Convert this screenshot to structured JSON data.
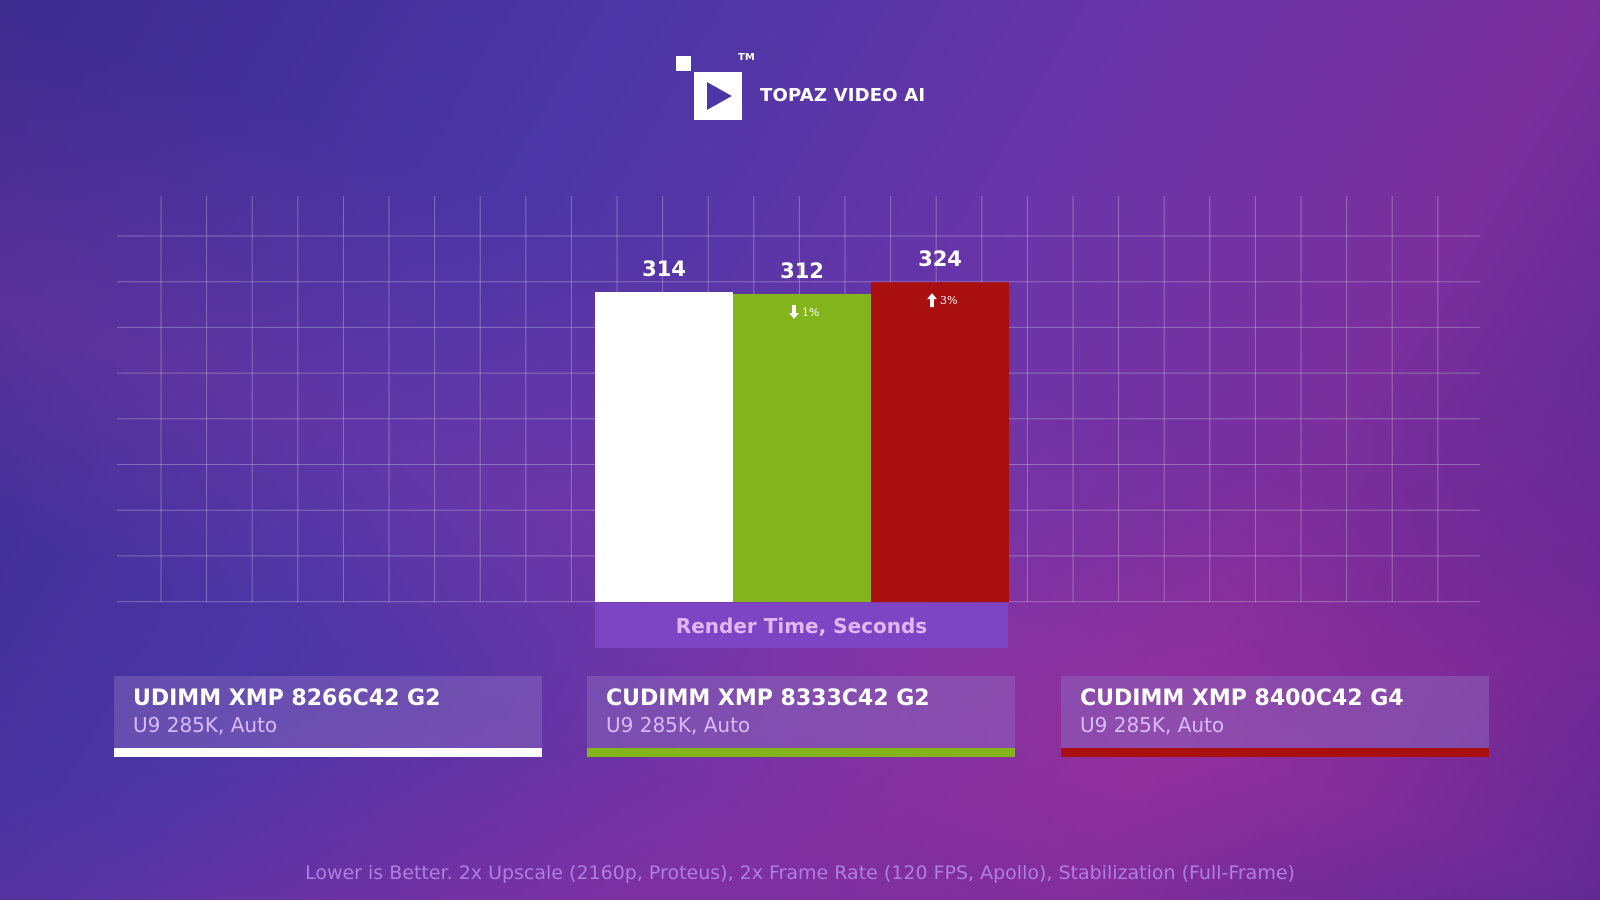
{
  "logo": {
    "name": "TOPAZ VIDEO AI",
    "tm": "TM"
  },
  "colors": {
    "white": "#ffffff",
    "green": "#84b41c",
    "red": "#aa0f0f"
  },
  "chart_data": {
    "type": "bar",
    "title": "",
    "xlabel": "Render Time, Seconds",
    "categories": [
      "UDIMM XMP 8266C42 G2",
      "CUDIMM XMP 8333C42 G2",
      "CUDIMM XMP 8400C42 G4"
    ],
    "values": [
      314,
      312,
      324
    ],
    "value_labels": [
      "314",
      "312",
      "324"
    ],
    "deltas": [
      "",
      "1%",
      "3%"
    ],
    "delta_directions": [
      "",
      "down",
      "up"
    ],
    "colors": [
      "#ffffff",
      "#84b41c",
      "#aa0f0f"
    ],
    "grid": true
  },
  "legend": [
    {
      "title": "UDIMM XMP 8266C42 G2",
      "subtitle": "U9 285K, Auto",
      "color": "#ffffff"
    },
    {
      "title": "CUDIMM XMP 8333C42 G2",
      "subtitle": "U9 285K, Auto",
      "color": "#84b41c"
    },
    {
      "title": "CUDIMM XMP 8400C42 G4",
      "subtitle": "U9 285K, Auto",
      "color": "#aa0f0f"
    }
  ],
  "footnote": "Lower is Better. 2x Upscale (2160p, Proteus), 2x Frame Rate (120 FPS, Apollo), Stabilization (Full-Frame)"
}
